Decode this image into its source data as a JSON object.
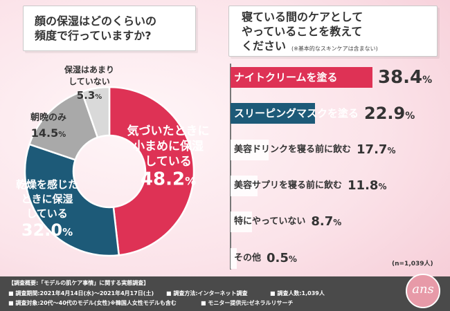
{
  "colors": {
    "red": "#de3255",
    "navy": "#1d5a78",
    "gray": "#a9a9a9",
    "light_gray": "#d9d9d9",
    "footer_bg": "#4a4a4a"
  },
  "left_question": "顔の保湿はどのくらいの\n頻度で行っていますか?",
  "right_question": {
    "line1": "寝ている間のケアとして",
    "line2": "やっていることを教えて",
    "line3": "ください",
    "note": "(※基本的なスキンケアは含まない)"
  },
  "n_label": "(n=1,039人)",
  "logo_text": "ans",
  "chart_data": [
    {
      "type": "pie",
      "title": "顔の保湿はどのくらいの頻度で行っていますか?",
      "slices": [
        {
          "label": "気づいたときに小まめに保湿している",
          "lines": [
            "気づいたときに",
            "小まめに保湿",
            "している"
          ],
          "value": 48.2,
          "value_text": "48.2",
          "unit": "%",
          "color": "#de3255"
        },
        {
          "label": "乾燥を感じたときに保湿している",
          "lines": [
            "乾燥を感じた",
            "ときに保湿",
            "している"
          ],
          "value": 32.0,
          "value_text": "32.0",
          "unit": "%",
          "color": "#1d5a78"
        },
        {
          "label": "朝晩のみ",
          "lines": [
            "朝晩のみ"
          ],
          "value": 14.5,
          "value_text": "14.5",
          "unit": "%",
          "color": "#a9a9a9"
        },
        {
          "label": "保湿はあまりしていない",
          "lines": [
            "保湿はあまり",
            "していない"
          ],
          "value": 5.3,
          "value_text": "5.3",
          "unit": "%",
          "color": "#d9d9d9"
        }
      ]
    },
    {
      "type": "bar",
      "title": "寝ている間のケアとしてやっていることを教えてください",
      "categories": [
        "ナイトクリームを塗る",
        "スリーピングマスクを塗る",
        "美容ドリンクを寝る前に飲む",
        "美容サプリを寝る前に飲む",
        "特にやっていない",
        "その他"
      ],
      "values": [
        38.4,
        22.9,
        17.7,
        11.8,
        8.7,
        0.5
      ],
      "value_texts": [
        "38.4",
        "22.9",
        "17.7",
        "11.8",
        "8.7",
        "0.5"
      ],
      "unit": "%",
      "colors": [
        "#de3255",
        "#1d5a78",
        "#ffffff",
        "#ffffff",
        "#ffffff",
        "#ffffff"
      ],
      "label_colors": [
        "#ffffff",
        "#ffffff",
        "#333333",
        "#333333",
        "#333333",
        "#333333"
      ],
      "n": "n=1,039人"
    }
  ],
  "footer": {
    "heading": "【調査概要:「モデルの肌ケア事情」に関する実態調査】",
    "period": "■ 調査期間:2021年4月14日(水)〜2021年4月17日(土)",
    "method": "■ 調査方法:インターネット調査",
    "count": "■ 調査人数:1,039人",
    "target": "■ 調査対象:20代〜40代のモデル(女性)※韓国人女性モデルも含む",
    "provider": "■ モニター提供元:ゼネラルリサーチ"
  }
}
